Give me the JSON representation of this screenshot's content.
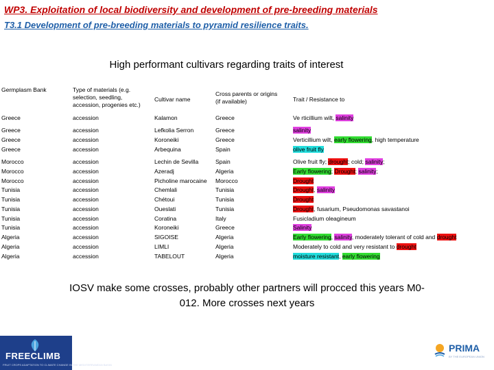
{
  "header": {
    "title": "WP3. Exploitation of local biodiversity and development of pre-breeding materials",
    "subtitle": "T3.1 Development of pre-breeding materials to pyramid resilience traits."
  },
  "table": {
    "caption": "High performant cultivars regarding traits of interest",
    "columns": {
      "germplasm": "Germplasm Bank",
      "type_line1": "Type of materials (e.g.",
      "type_line2": "selection, seedling,",
      "type_line3": "accession, progenies etc.)",
      "cultivar": "Cultivar name",
      "cross_line1": "Cross parents or origins",
      "cross_line2": "(if available)",
      "trait": "Trait / Resistance to"
    },
    "rows": [
      {
        "bank": "Greece",
        "type": "accession",
        "cultivar": "Kalamon",
        "origin": "Greece",
        "trait": [
          {
            "t": "Ve rticillium wilt, "
          },
          {
            "t": "salinity",
            "hl": "pink"
          }
        ]
      },
      {
        "bank": "Greece",
        "type": "accession",
        "cultivar": "Lefkolia Serron",
        "origin": "Greece",
        "trait": [
          {
            "t": "salinity",
            "hl": "pink"
          }
        ]
      },
      {
        "bank": "Greece",
        "type": "accession",
        "cultivar": "Koroneiki",
        "origin": "Greece",
        "trait": [
          {
            "t": "Verticillium wilt, "
          },
          {
            "t": "early flowering",
            "hl": "green"
          },
          {
            "t": ", high temperature"
          }
        ]
      },
      {
        "bank": "Greece",
        "type": "accession",
        "cultivar": "Arbequina",
        "origin": "Spain",
        "trait": [
          {
            "t": "olive fruit fly",
            "hl": "cyan"
          }
        ]
      },
      {
        "bank": "Morocco",
        "type": "accession",
        "cultivar": "Lechin de Sevilla",
        "origin": "Spain",
        "trait": [
          {
            "t": "Olive fruit fly; "
          },
          {
            "t": "drought",
            "hl": "red"
          },
          {
            "t": "; cold; "
          },
          {
            "t": "salinity",
            "hl": "pink"
          },
          {
            "t": ";"
          }
        ]
      },
      {
        "bank": "Morocco",
        "type": "accession",
        "cultivar": "Azeradj",
        "origin": "Algeria",
        "trait": [
          {
            "t": "Early flowering",
            "hl": "green"
          },
          {
            "t": "; "
          },
          {
            "t": "Drought",
            "hl": "red"
          },
          {
            "t": "; "
          },
          {
            "t": "salinity",
            "hl": "pink"
          },
          {
            "t": ";"
          }
        ]
      },
      {
        "bank": "Morocco",
        "type": "accession",
        "cultivar": "Picholine marocaine",
        "origin": "Morocco",
        "trait": [
          {
            "t": "Drought",
            "hl": "red"
          }
        ]
      },
      {
        "bank": "Tunisia",
        "type": "accession",
        "cultivar": "Chemlali",
        "origin": "Tunisia",
        "trait": [
          {
            "t": "Drought",
            "hl": "red"
          },
          {
            "t": ", "
          },
          {
            "t": "salinity",
            "hl": "pink"
          }
        ]
      },
      {
        "bank": "Tunisia",
        "type": "accession",
        "cultivar": "Chétoui",
        "origin": "Tunisia",
        "trait": [
          {
            "t": "Drought",
            "hl": "red"
          }
        ]
      },
      {
        "bank": "Tunisia",
        "type": "accession",
        "cultivar": "Oueslati",
        "origin": "Tunisia",
        "trait": [
          {
            "t": "Drought",
            "hl": "red"
          },
          {
            "t": ", fusarium, Pseudomonas savastanoi"
          }
        ]
      },
      {
        "bank": "Tunisia",
        "type": "accession",
        "cultivar": "Coratina",
        "origin": "Italy",
        "trait": [
          {
            "t": "Fusicladium oleagineum"
          }
        ]
      },
      {
        "bank": "Tunisia",
        "type": "accession",
        "cultivar": "Koroneiki",
        "origin": "Greece",
        "trait": [
          {
            "t": "Salinity",
            "hl": "pink"
          }
        ]
      },
      {
        "bank": "Algeria",
        "type": "accession",
        "cultivar": "SIGOISE",
        "origin": "Algeria",
        "trait": [
          {
            "t": "Early flowering",
            "hl": "green"
          },
          {
            "t": ", "
          },
          {
            "t": "salinity",
            "hl": "pink"
          },
          {
            "t": ", moderately tolerant of cold and "
          },
          {
            "t": "drought",
            "hl": "red"
          }
        ]
      },
      {
        "bank": "Algeria",
        "type": "accession",
        "cultivar": "LIMLI",
        "origin": "Algeria",
        "trait": [
          {
            "t": "Moderately to cold and very resistant to "
          },
          {
            "t": "drought",
            "hl": "red"
          }
        ]
      },
      {
        "bank": "Algeria",
        "type": "accession",
        "cultivar": "TABELOUT",
        "origin": "Algeria",
        "trait": [
          {
            "t": "moisture resistant",
            "hl": "cyan"
          },
          {
            "t": ", "
          },
          {
            "t": "early flowering",
            "hl": "green"
          }
        ]
      }
    ]
  },
  "note_line1": "IOSV make some crosses, probably other partners will procced this years M0-",
  "note_line2": "012. More crosses next years",
  "logos": {
    "left_name": "FREECLIMB",
    "left_tagline": "FRUIT CROPS ADAPTATION TO CLIMATE CHANGE IN THE MEDITERRANEAN BASIN",
    "right_name": "PRIMA",
    "right_tagline": "BY THE EUROPEAN UNION"
  },
  "colors": {
    "pink": "#e040e0",
    "green": "#33dd33",
    "red": "#ee1111",
    "cyan": "#22dddd"
  }
}
